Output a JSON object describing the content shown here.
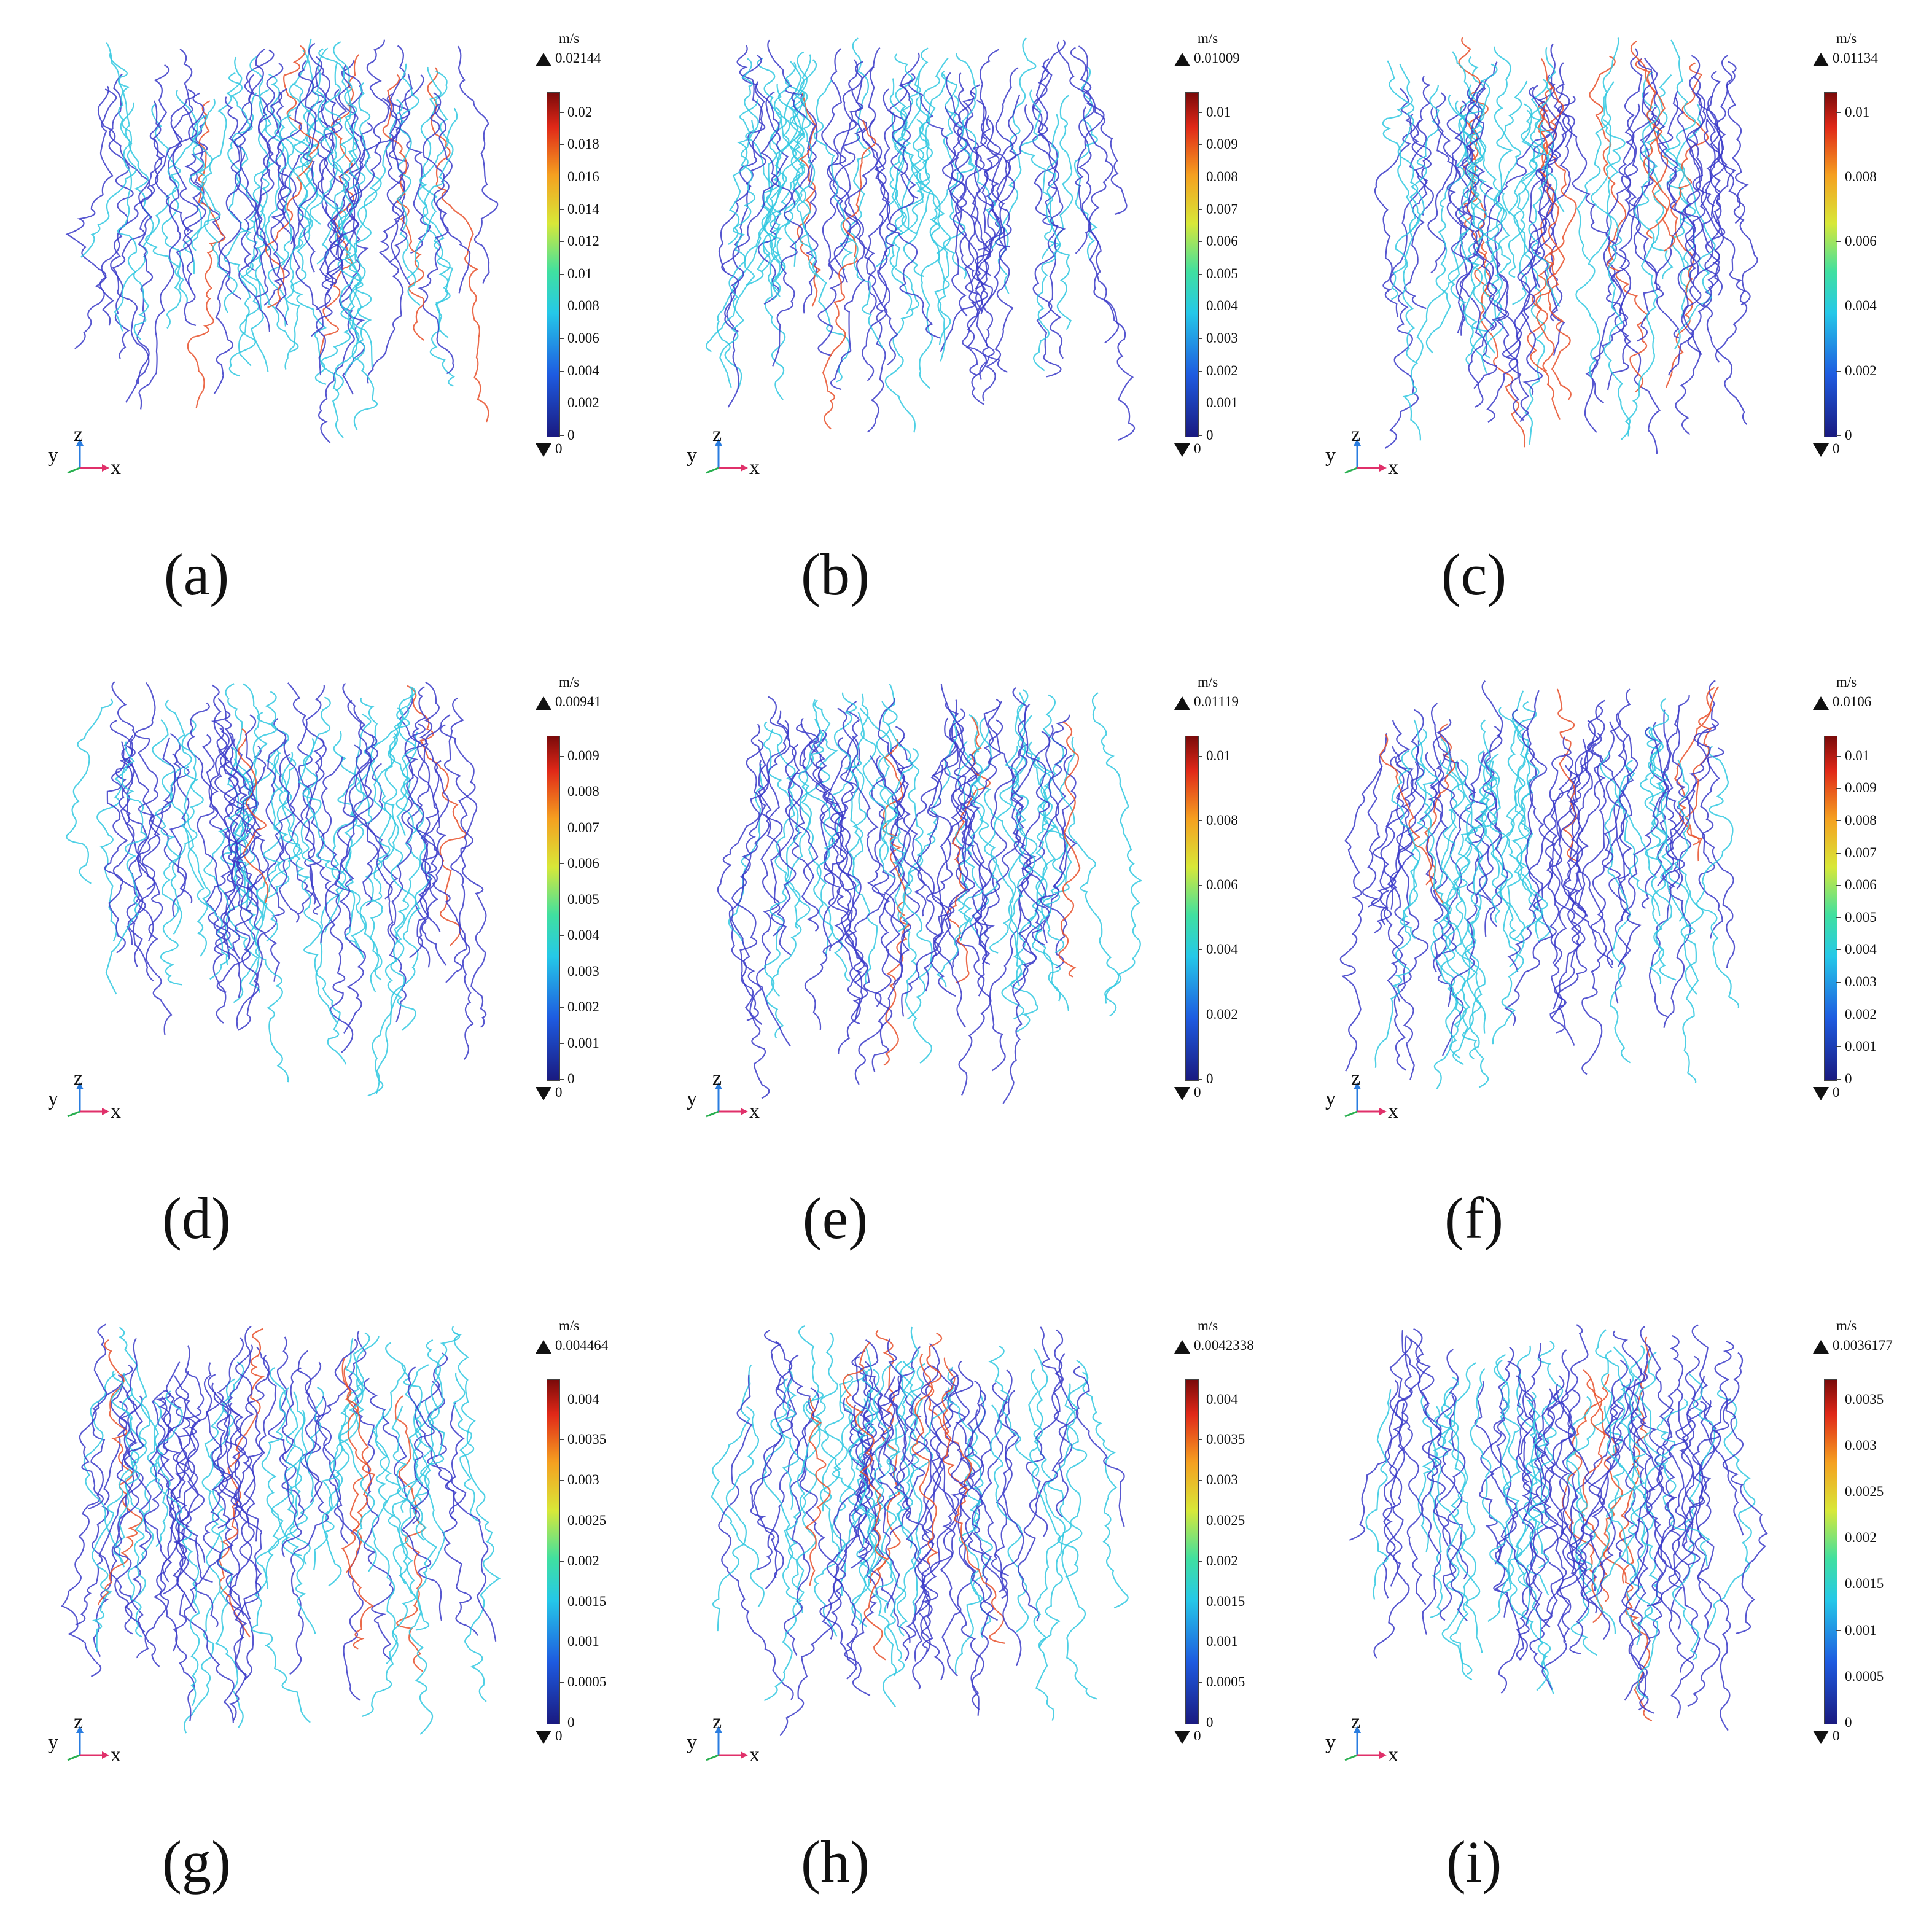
{
  "panels": [
    {
      "caption": "(a)",
      "unit": "m/s",
      "max_label": "0.02144",
      "min_label": "0",
      "ticks": [
        "0.02",
        "0.018",
        "0.016",
        "0.014",
        "0.012",
        "0.01",
        "0.008",
        "0.006",
        "0.004",
        "0.002",
        "0"
      ],
      "axes": {
        "y": "y",
        "z": "z",
        "x": "x"
      }
    },
    {
      "caption": "(b)",
      "unit": "m/s",
      "max_label": "0.01009",
      "min_label": "0",
      "ticks": [
        "0.01",
        "0.009",
        "0.008",
        "0.007",
        "0.006",
        "0.005",
        "0.004",
        "0.003",
        "0.002",
        "0.001",
        "0"
      ],
      "axes": {
        "y": "y",
        "z": "z",
        "x": "x"
      }
    },
    {
      "caption": "(c)",
      "unit": "m/s",
      "max_label": "0.01134",
      "min_label": "0",
      "ticks": [
        "0.01",
        "0.008",
        "0.006",
        "0.004",
        "0.002",
        "0"
      ],
      "axes": {
        "y": "y",
        "z": "z",
        "x": "x"
      }
    },
    {
      "caption": "(d)",
      "unit": "m/s",
      "max_label": "0.00941",
      "min_label": "0",
      "ticks": [
        "0.009",
        "0.008",
        "0.007",
        "0.006",
        "0.005",
        "0.004",
        "0.003",
        "0.002",
        "0.001",
        "0"
      ],
      "axes": {
        "y": "y",
        "z": "z",
        "x": "x"
      }
    },
    {
      "caption": "(e)",
      "unit": "m/s",
      "max_label": "0.01119",
      "min_label": "0",
      "ticks": [
        "0.01",
        "0.008",
        "0.006",
        "0.004",
        "0.002",
        "0"
      ],
      "axes": {
        "y": "y",
        "z": "z",
        "x": "x"
      }
    },
    {
      "caption": "(f)",
      "unit": "m/s",
      "max_label": "0.0106",
      "min_label": "0",
      "ticks": [
        "0.01",
        "0.009",
        "0.008",
        "0.007",
        "0.006",
        "0.005",
        "0.004",
        "0.003",
        "0.002",
        "0.001",
        "0"
      ],
      "axes": {
        "y": "y",
        "z": "z",
        "x": "x"
      }
    },
    {
      "caption": "(g)",
      "unit": "m/s",
      "max_label": "0.004464",
      "min_label": "0",
      "ticks": [
        "0.004",
        "0.0035",
        "0.003",
        "0.0025",
        "0.002",
        "0.0015",
        "0.001",
        "0.0005",
        "0"
      ],
      "axes": {
        "y": "y",
        "z": "z",
        "x": "x"
      }
    },
    {
      "caption": "(h)",
      "unit": "m/s",
      "max_label": "0.0042338",
      "min_label": "0",
      "ticks": [
        "0.004",
        "0.0035",
        "0.003",
        "0.0025",
        "0.002",
        "0.0015",
        "0.001",
        "0.0005",
        "0"
      ],
      "axes": {
        "y": "y",
        "z": "z",
        "x": "x"
      }
    },
    {
      "caption": "(i)",
      "unit": "m/s",
      "max_label": "0.0036177",
      "min_label": "0",
      "ticks": [
        "0.0035",
        "0.003",
        "0.0025",
        "0.002",
        "0.0015",
        "0.001",
        "0.0005",
        "0"
      ],
      "axes": {
        "y": "y",
        "z": "z",
        "x": "x"
      }
    }
  ],
  "colors": {
    "streamline_low": "#3a3ac8",
    "streamline_mid": "#30c8e0",
    "streamline_high": "#e8502a"
  }
}
